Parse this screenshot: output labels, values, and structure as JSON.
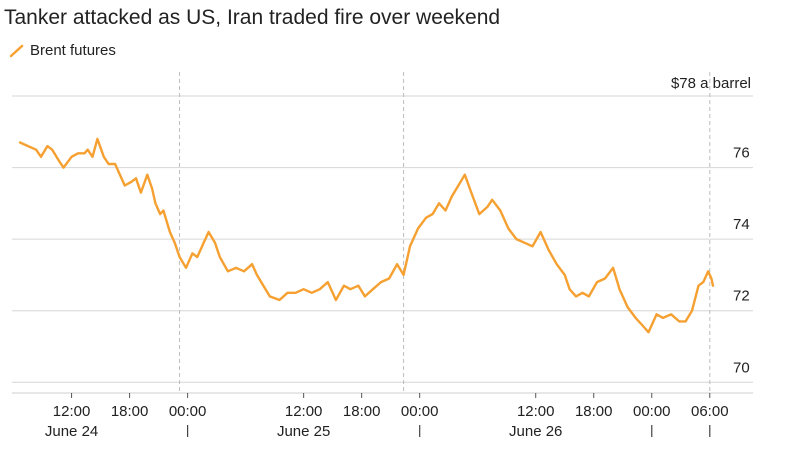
{
  "title": "Tanker attacked as US, Iran traded fire over weekend",
  "chart_data": {
    "type": "line",
    "title": "Tanker attacked as US, Iran traded fire over weekend",
    "series": [
      {
        "name": "Brent futures",
        "color": "#f5a031",
        "x": [
          "06-24 06:40",
          "06-24 07:30",
          "06-24 08:20",
          "06-24 08:50",
          "06-24 09:30",
          "06-24 10:00",
          "06-24 10:40",
          "06-24 11:10",
          "06-24 12:00",
          "06-24 12:40",
          "06-24 13:20",
          "06-24 13:40",
          "06-24 14:10",
          "06-24 14:40",
          "06-24 15:20",
          "06-24 15:50",
          "06-24 16:30",
          "06-24 17:00",
          "06-24 17:30",
          "06-24 18:10",
          "06-24 18:40",
          "06-24 19:10",
          "06-24 19:50",
          "06-24 20:20",
          "06-24 20:40",
          "06-24 21:10",
          "06-24 21:30",
          "06-24 22:10",
          "06-24 22:40",
          "06-24 23:10",
          "06-24 23:50",
          "06-25 00:30",
          "06-25 01:00",
          "06-25 01:40",
          "06-25 02:10",
          "06-25 02:50",
          "06-25 03:20",
          "06-25 04:10",
          "06-25 05:00",
          "06-25 05:50",
          "06-25 06:40",
          "06-25 07:10",
          "06-25 07:50",
          "06-25 08:30",
          "06-25 09:30",
          "06-25 10:20",
          "06-25 11:10",
          "06-25 12:00",
          "06-25 12:50",
          "06-25 13:40",
          "06-25 14:30",
          "06-25 15:20",
          "06-25 16:10",
          "06-25 16:50",
          "06-25 17:40",
          "06-25 18:20",
          "06-25 19:10",
          "06-25 20:00",
          "06-25 20:50",
          "06-25 21:40",
          "06-25 22:20",
          "06-25 23:00",
          "06-25 23:50",
          "06-26 00:40",
          "06-26 01:20",
          "06-26 02:00",
          "06-26 02:40",
          "06-26 03:20",
          "06-26 04:00",
          "06-26 04:40",
          "06-26 05:20",
          "06-26 06:10",
          "06-26 07:00",
          "06-26 07:30",
          "06-26 08:20",
          "06-26 09:10",
          "06-26 10:00",
          "06-26 10:50",
          "06-26 11:40",
          "06-26 12:30",
          "06-26 13:20",
          "06-26 14:10",
          "06-26 15:00",
          "06-26 15:30",
          "06-26 16:10",
          "06-26 16:50",
          "06-26 17:30",
          "06-26 18:20",
          "06-26 19:10",
          "06-26 20:00",
          "06-26 20:40",
          "06-26 21:30",
          "06-26 22:20",
          "06-26 23:00",
          "06-26 23:40",
          "06-27 00:30",
          "06-27 01:10",
          "06-27 02:00",
          "06-27 02:50",
          "06-27 03:30",
          "06-27 04:10",
          "06-27 04:50",
          "06-27 05:20",
          "06-27 05:50",
          "06-27 06:10",
          "06-27 06:20"
        ],
        "values": [
          76.7,
          76.6,
          76.5,
          76.3,
          76.6,
          76.5,
          76.2,
          76.0,
          76.3,
          76.4,
          76.4,
          76.5,
          76.3,
          76.8,
          76.3,
          76.1,
          76.1,
          75.8,
          75.5,
          75.6,
          75.7,
          75.3,
          75.8,
          75.4,
          75.0,
          74.7,
          74.8,
          74.2,
          73.9,
          73.5,
          73.2,
          73.6,
          73.5,
          73.9,
          74.2,
          73.9,
          73.5,
          73.1,
          73.2,
          73.1,
          73.3,
          73.0,
          72.7,
          72.4,
          72.3,
          72.5,
          72.5,
          72.6,
          72.5,
          72.6,
          72.8,
          72.3,
          72.7,
          72.6,
          72.7,
          72.4,
          72.6,
          72.8,
          72.9,
          73.3,
          73.0,
          73.8,
          74.3,
          74.6,
          74.7,
          75.0,
          74.8,
          75.2,
          75.5,
          75.8,
          75.3,
          74.7,
          74.9,
          75.1,
          74.8,
          74.3,
          74.0,
          73.9,
          73.8,
          74.2,
          73.7,
          73.3,
          73.0,
          72.6,
          72.4,
          72.5,
          72.4,
          72.8,
          72.9,
          73.2,
          72.6,
          72.1,
          71.8,
          71.6,
          71.4,
          71.9,
          71.8,
          71.9,
          71.7,
          71.7,
          72.0,
          72.7,
          72.8,
          73.1,
          72.9,
          72.7
        ]
      }
    ],
    "xlim": [
      "06-24 06:40",
      "06-27 06:20"
    ],
    "ylim": [
      69.7,
      78
    ],
    "yticks": [
      {
        "value": 78,
        "label": "$78 a barrel"
      },
      {
        "value": 76,
        "label": "76"
      },
      {
        "value": 74,
        "label": "74"
      },
      {
        "value": 72,
        "label": "72"
      },
      {
        "value": 70,
        "label": "70"
      }
    ],
    "xticks": [
      {
        "at": "06-24 12:00",
        "label": "12:00"
      },
      {
        "at": "06-24 18:00",
        "label": "18:00"
      },
      {
        "at": "06-25 00:00",
        "label": "00:00"
      },
      {
        "at": "06-25 12:00",
        "label": "12:00"
      },
      {
        "at": "06-25 18:00",
        "label": "18:00"
      },
      {
        "at": "06-26 00:00",
        "label": "00:00"
      },
      {
        "at": "06-26 12:00",
        "label": "12:00"
      },
      {
        "at": "06-26 18:00",
        "label": "18:00"
      },
      {
        "at": "06-27 00:00",
        "label": "00:00"
      },
      {
        "at": "06-27 06:00",
        "label": "06:00"
      }
    ],
    "day_labels": [
      {
        "at": "06-24 12:00",
        "label": "June 24"
      },
      {
        "at": "06-25 12:00",
        "label": "June 25"
      },
      {
        "at": "06-26 12:00",
        "label": "June 26"
      }
    ],
    "day_separators": [
      "06-25 00:00",
      "06-26 00:00",
      "06-27 00:00",
      "06-27 06:00"
    ],
    "vertical_markers": [
      "06-24 23:10",
      "06-25 22:20",
      "06-27 06:00"
    ],
    "grid": true,
    "legend_position": "top-left"
  }
}
